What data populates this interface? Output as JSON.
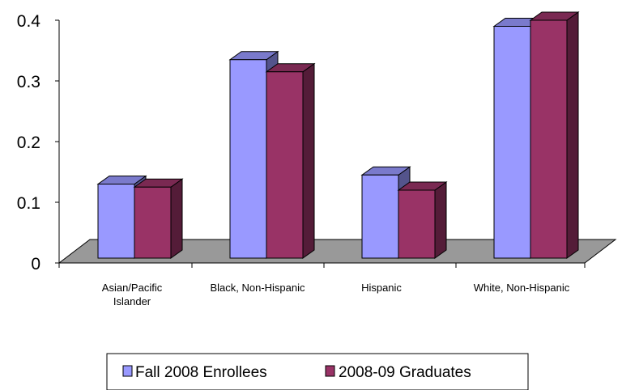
{
  "chart_data": {
    "type": "bar",
    "categories": [
      [
        "Asian/Pacific",
        "Islander"
      ],
      [
        "Black, Non-Hispanic"
      ],
      [
        "Hispanic"
      ],
      [
        "White, Non-Hispanic"
      ]
    ],
    "series": [
      {
        "name": "Fall 2008 Enrollees",
        "values": [
          0.13,
          0.335,
          0.145,
          0.39
        ],
        "color": "#9999ff"
      },
      {
        "name": "2008-09 Graduates",
        "values": [
          0.125,
          0.315,
          0.12,
          0.4
        ],
        "color": "#993366"
      }
    ],
    "y_ticks": [
      "0",
      "0.1",
      "0.2",
      "0.3",
      "0.4"
    ],
    "ylim": [
      0,
      0.4
    ],
    "grid": false,
    "three_d": true,
    "legend_position": "bottom"
  }
}
